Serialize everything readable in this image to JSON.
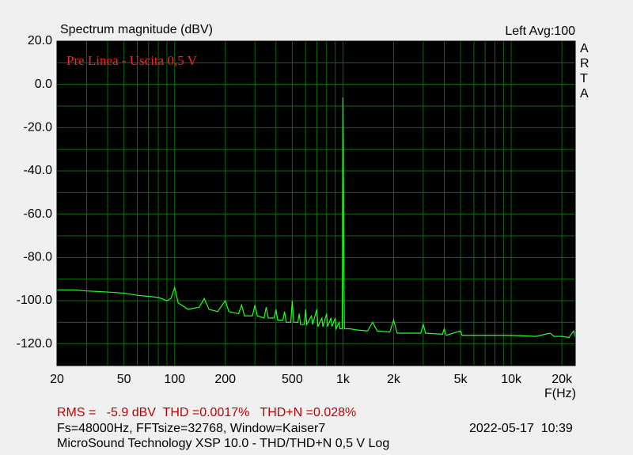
{
  "chart_data": {
    "type": "line",
    "title": "Spectrum magnitude (dBV)",
    "channel_info": "Left  Avg:100",
    "brand": "ARTA",
    "annotation": "Pre Linea - Uscita 0,5 V",
    "x_label": "F(Hz)",
    "log_x": true,
    "grid": true,
    "xlim": [
      20,
      24000
    ],
    "ylim": [
      -130,
      20
    ],
    "xticks": [
      20,
      50,
      100,
      200,
      500,
      {
        "value": 1000,
        "label": "1k"
      },
      {
        "value": 2000,
        "label": "2k"
      },
      {
        "value": 5000,
        "label": "5k"
      },
      {
        "value": 10000,
        "label": "10k"
      },
      {
        "value": 20000,
        "label": "20k"
      }
    ],
    "xgrid_minor": [
      30,
      40,
      60,
      70,
      80,
      90,
      300,
      400,
      600,
      700,
      800,
      900,
      3000,
      4000,
      6000,
      7000,
      8000,
      9000
    ],
    "yticks": [
      {
        "value": 20,
        "label": "20.0"
      },
      {
        "value": 0,
        "label": "0.0"
      },
      {
        "value": -20,
        "label": "-20.0"
      },
      {
        "value": -40,
        "label": "-40.0"
      },
      {
        "value": -60,
        "label": "-60.0"
      },
      {
        "value": -80,
        "label": "-80.0"
      },
      {
        "value": -100,
        "label": "-100.0"
      },
      {
        "value": -120,
        "label": "-120.0"
      }
    ],
    "ygrid_minor": [
      10,
      -10,
      -30,
      -50,
      -70,
      -90,
      -110,
      -130
    ],
    "series": [
      {
        "name": "Left",
        "color": "#22ff22",
        "x": [
          20,
          25,
          30,
          40,
          50,
          60,
          70,
          80,
          90,
          95,
          100,
          105,
          120,
          140,
          150,
          160,
          180,
          200,
          210,
          240,
          250,
          260,
          290,
          300,
          310,
          340,
          350,
          360,
          390,
          400,
          410,
          440,
          450,
          460,
          490,
          500,
          510,
          540,
          550,
          560,
          590,
          600,
          610,
          650,
          660,
          700,
          710,
          750,
          760,
          800,
          810,
          850,
          860,
          900,
          910,
          950,
          960,
          990,
          995,
          1000,
          1005,
          1010,
          1020,
          1100,
          1200,
          1400,
          1500,
          1600,
          1900,
          2000,
          2100,
          2900,
          3000,
          3100,
          3900,
          4000,
          4100,
          5000,
          5100,
          7000,
          10000,
          14000,
          17000,
          18000,
          20000,
          22000,
          23500,
          24000
        ],
        "values": [
          -95,
          -95,
          -95.5,
          -96,
          -96.5,
          -97.5,
          -98,
          -98.5,
          -100,
          -99,
          -94,
          -101,
          -104,
          -103,
          -99,
          -104,
          -105,
          -100,
          -105,
          -106,
          -102,
          -107,
          -107,
          -102,
          -107,
          -108,
          -103,
          -108,
          -108,
          -104,
          -109,
          -109,
          -105,
          -110,
          -110,
          -100,
          -110,
          -110,
          -106,
          -111,
          -111,
          -104,
          -111,
          -107,
          -111,
          -104,
          -112,
          -108,
          -112,
          -106,
          -112,
          -108,
          -112,
          -108,
          -113,
          -110,
          -113,
          -113,
          -60,
          -6,
          -26,
          -70,
          -113,
          -113,
          -113.5,
          -114,
          -110,
          -114,
          -114.5,
          -109,
          -115,
          -115,
          -111,
          -115,
          -115.5,
          -113,
          -116,
          -114,
          -116,
          -116,
          -116,
          -116.5,
          -115,
          -116.5,
          -116.5,
          -117,
          -114,
          -117
        ]
      }
    ]
  },
  "footer": {
    "stats": "RMS =   -5.9 dBV  THD =0.0017%   THD+N =0.028%",
    "settings": "Fs=48000Hz, FFTsize=32768, Window=Kaiser7",
    "timestamp": "2022-05-17  10:39",
    "software": "MicroSound Technology XSP 10.0 - THD/THD+N 0,5 V Log"
  }
}
